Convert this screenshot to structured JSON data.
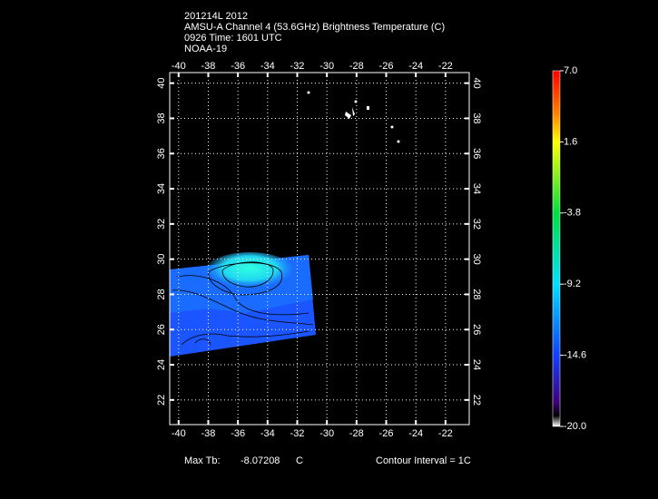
{
  "header": {
    "lines": [
      "201214L 2012",
      "AMSU-A Channel 4 (53.6GHz) Brightness Temperature (C)",
      "0926 Time: 1601 UTC",
      "NOAA-19"
    ]
  },
  "map": {
    "xlim": [
      -40.6,
      -20.4
    ],
    "ylim": [
      20.6,
      40.6
    ],
    "xticks": [
      -40,
      -38,
      -36,
      -34,
      -32,
      -30,
      -28,
      -26,
      -24,
      -22
    ],
    "yticks": [
      22,
      24,
      26,
      28,
      30,
      32,
      34,
      36,
      38,
      40
    ],
    "grid": true
  },
  "colorbar": {
    "lim": [
      -20,
      7
    ],
    "ticks": [
      {
        "value": 7,
        "label": "7.0"
      },
      1.6,
      -3.8,
      -9.2,
      -14.6,
      {
        "value": -20,
        "label": "-20.0"
      }
    ]
  },
  "footer": {
    "max_label": "Max Tb:",
    "max_value": "-8.07208",
    "max_unit": "C",
    "contour": "Contour Interval = 1C"
  }
}
